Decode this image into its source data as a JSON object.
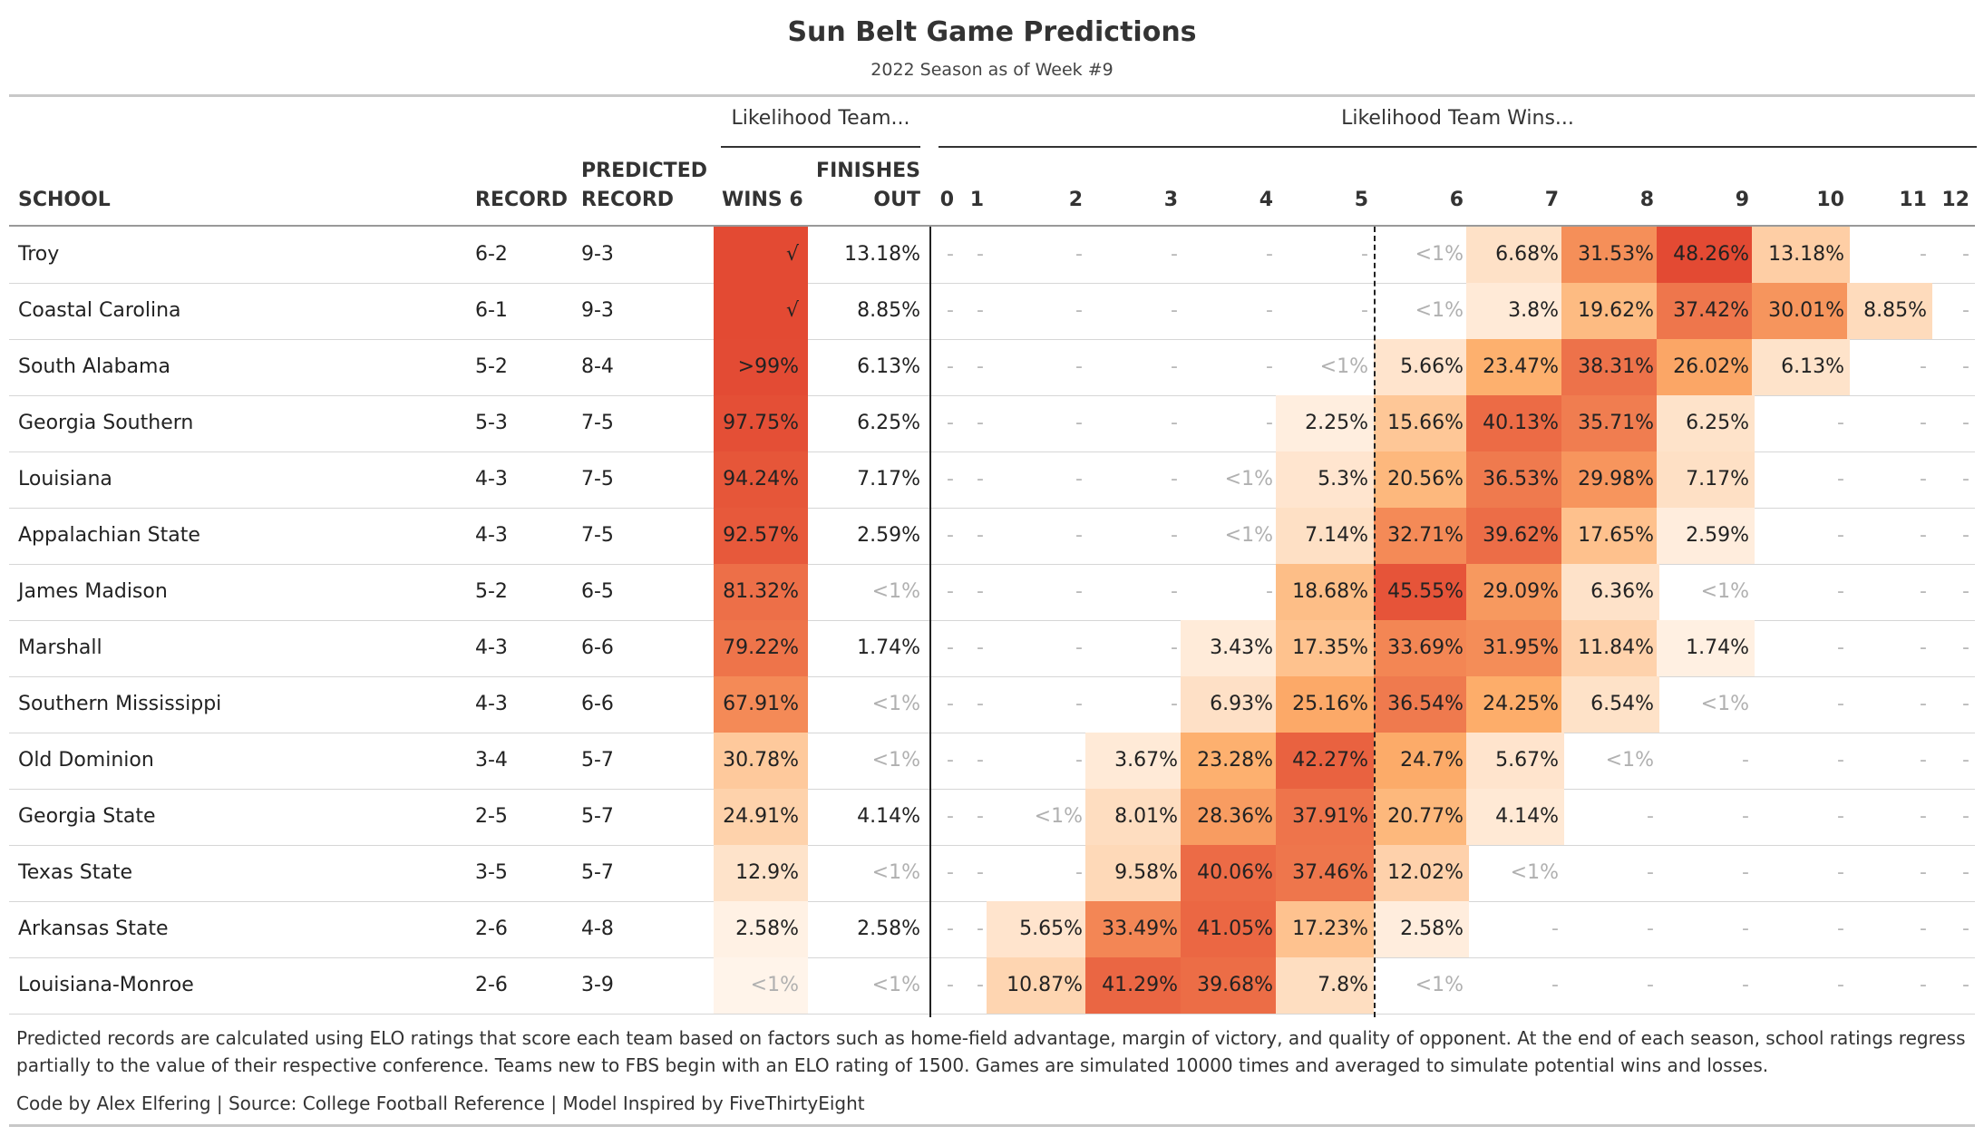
{
  "title": "Sun Belt Game Predictions",
  "subtitle": "2022 Season as of Week #9",
  "spanners": {
    "finish": "Likelihood Team...",
    "wins": "Likelihood Team Wins..."
  },
  "headers": {
    "school": "SCHOOL",
    "record": "RECORD",
    "predicted_line1": "PREDICTED",
    "predicted_line2": "RECORD",
    "wins6": "WINS 6",
    "finishes_line1": "FINISHES",
    "finishes_line2": "OUT",
    "win_counts": [
      "0",
      "1",
      "2",
      "3",
      "4",
      "5",
      "6",
      "7",
      "8",
      "9",
      "10",
      "11",
      "12"
    ]
  },
  "colors": {
    "scale_low": "#fff5eb",
    "scale_mid": "#fdae6b",
    "scale_high": "#e34a33",
    "text": "#222222",
    "muted": "#b0b0b0"
  },
  "chart_data": {
    "type": "table",
    "columns": [
      "SCHOOL",
      "RECORD",
      "PREDICTED RECORD",
      "WINS 6",
      "FINISHES OUT",
      "0",
      "1",
      "2",
      "3",
      "4",
      "5",
      "6",
      "7",
      "8",
      "9",
      "10",
      "11",
      "12"
    ],
    "rows": [
      {
        "school": "Troy",
        "record": "6-2",
        "predicted": "9-3",
        "wins6": "√",
        "wins6_v": 100,
        "finishes_out": "13.18%",
        "wins": [
          "-",
          "-",
          "-",
          "-",
          "-",
          "-",
          "<1%",
          "6.68%",
          "31.53%",
          "48.26%",
          "13.18%",
          "-",
          "-"
        ],
        "wins_v": [
          0,
          0,
          0,
          0,
          0,
          0,
          0.5,
          6.68,
          31.53,
          48.26,
          13.18,
          0,
          0
        ]
      },
      {
        "school": "Coastal Carolina",
        "record": "6-1",
        "predicted": "9-3",
        "wins6": "√",
        "wins6_v": 100,
        "finishes_out": "8.85%",
        "wins": [
          "-",
          "-",
          "-",
          "-",
          "-",
          "-",
          "<1%",
          "3.8%",
          "19.62%",
          "37.42%",
          "30.01%",
          "8.85%",
          "-"
        ],
        "wins_v": [
          0,
          0,
          0,
          0,
          0,
          0,
          0.5,
          3.8,
          19.62,
          37.42,
          30.01,
          8.85,
          0
        ]
      },
      {
        "school": "South Alabama",
        "record": "5-2",
        "predicted": "8-4",
        "wins6": ">99%",
        "wins6_v": 99.5,
        "finishes_out": "6.13%",
        "wins": [
          "-",
          "-",
          "-",
          "-",
          "-",
          "<1%",
          "5.66%",
          "23.47%",
          "38.31%",
          "26.02%",
          "6.13%",
          "-",
          "-"
        ],
        "wins_v": [
          0,
          0,
          0,
          0,
          0,
          0.5,
          5.66,
          23.47,
          38.31,
          26.02,
          6.13,
          0,
          0
        ]
      },
      {
        "school": "Georgia Southern",
        "record": "5-3",
        "predicted": "7-5",
        "wins6": "97.75%",
        "wins6_v": 97.75,
        "finishes_out": "6.25%",
        "wins": [
          "-",
          "-",
          "-",
          "-",
          "-",
          "2.25%",
          "15.66%",
          "40.13%",
          "35.71%",
          "6.25%",
          "-",
          "-",
          "-"
        ],
        "wins_v": [
          0,
          0,
          0,
          0,
          0,
          2.25,
          15.66,
          40.13,
          35.71,
          6.25,
          0,
          0,
          0
        ]
      },
      {
        "school": "Louisiana",
        "record": "4-3",
        "predicted": "7-5",
        "wins6": "94.24%",
        "wins6_v": 94.24,
        "finishes_out": "7.17%",
        "wins": [
          "-",
          "-",
          "-",
          "-",
          "<1%",
          "5.3%",
          "20.56%",
          "36.53%",
          "29.98%",
          "7.17%",
          "-",
          "-",
          "-"
        ],
        "wins_v": [
          0,
          0,
          0,
          0,
          0.5,
          5.3,
          20.56,
          36.53,
          29.98,
          7.17,
          0,
          0,
          0
        ]
      },
      {
        "school": "Appalachian State",
        "record": "4-3",
        "predicted": "7-5",
        "wins6": "92.57%",
        "wins6_v": 92.57,
        "finishes_out": "2.59%",
        "wins": [
          "-",
          "-",
          "-",
          "-",
          "<1%",
          "7.14%",
          "32.71%",
          "39.62%",
          "17.65%",
          "2.59%",
          "-",
          "-",
          "-"
        ],
        "wins_v": [
          0,
          0,
          0,
          0,
          0.5,
          7.14,
          32.71,
          39.62,
          17.65,
          2.59,
          0,
          0,
          0
        ]
      },
      {
        "school": "James Madison",
        "record": "5-2",
        "predicted": "6-5",
        "wins6": "81.32%",
        "wins6_v": 81.32,
        "finishes_out": "<1%",
        "wins": [
          "-",
          "-",
          "-",
          "-",
          "-",
          "18.68%",
          "45.55%",
          "29.09%",
          "6.36%",
          "<1%",
          "-",
          "-",
          "-"
        ],
        "wins_v": [
          0,
          0,
          0,
          0,
          0,
          18.68,
          45.55,
          29.09,
          6.36,
          0.5,
          0,
          0,
          0
        ]
      },
      {
        "school": "Marshall",
        "record": "4-3",
        "predicted": "6-6",
        "wins6": "79.22%",
        "wins6_v": 79.22,
        "finishes_out": "1.74%",
        "wins": [
          "-",
          "-",
          "-",
          "-",
          "3.43%",
          "17.35%",
          "33.69%",
          "31.95%",
          "11.84%",
          "1.74%",
          "-",
          "-",
          "-"
        ],
        "wins_v": [
          0,
          0,
          0,
          0,
          3.43,
          17.35,
          33.69,
          31.95,
          11.84,
          1.74,
          0,
          0,
          0
        ]
      },
      {
        "school": "Southern Mississippi",
        "record": "4-3",
        "predicted": "6-6",
        "wins6": "67.91%",
        "wins6_v": 67.91,
        "finishes_out": "<1%",
        "wins": [
          "-",
          "-",
          "-",
          "-",
          "6.93%",
          "25.16%",
          "36.54%",
          "24.25%",
          "6.54%",
          "<1%",
          "-",
          "-",
          "-"
        ],
        "wins_v": [
          0,
          0,
          0,
          0,
          6.93,
          25.16,
          36.54,
          24.25,
          6.54,
          0.5,
          0,
          0,
          0
        ]
      },
      {
        "school": "Old Dominion",
        "record": "3-4",
        "predicted": "5-7",
        "wins6": "30.78%",
        "wins6_v": 30.78,
        "finishes_out": "<1%",
        "wins": [
          "-",
          "-",
          "-",
          "3.67%",
          "23.28%",
          "42.27%",
          "24.7%",
          "5.67%",
          "<1%",
          "-",
          "-",
          "-",
          "-"
        ],
        "wins_v": [
          0,
          0,
          0,
          3.67,
          23.28,
          42.27,
          24.7,
          5.67,
          0.5,
          0,
          0,
          0,
          0
        ]
      },
      {
        "school": "Georgia State",
        "record": "2-5",
        "predicted": "5-7",
        "wins6": "24.91%",
        "wins6_v": 24.91,
        "finishes_out": "4.14%",
        "wins": [
          "-",
          "-",
          "<1%",
          "8.01%",
          "28.36%",
          "37.91%",
          "20.77%",
          "4.14%",
          "-",
          "-",
          "-",
          "-",
          "-"
        ],
        "wins_v": [
          0,
          0,
          0.5,
          8.01,
          28.36,
          37.91,
          20.77,
          4.14,
          0,
          0,
          0,
          0,
          0
        ]
      },
      {
        "school": "Texas State",
        "record": "3-5",
        "predicted": "5-7",
        "wins6": "12.9%",
        "wins6_v": 12.9,
        "finishes_out": "<1%",
        "wins": [
          "-",
          "-",
          "-",
          "9.58%",
          "40.06%",
          "37.46%",
          "12.02%",
          "<1%",
          "-",
          "-",
          "-",
          "-",
          "-"
        ],
        "wins_v": [
          0,
          0,
          0,
          9.58,
          40.06,
          37.46,
          12.02,
          0.5,
          0,
          0,
          0,
          0,
          0
        ]
      },
      {
        "school": "Arkansas State",
        "record": "2-6",
        "predicted": "4-8",
        "wins6": "2.58%",
        "wins6_v": 2.58,
        "finishes_out": "2.58%",
        "wins": [
          "-",
          "-",
          "5.65%",
          "33.49%",
          "41.05%",
          "17.23%",
          "2.58%",
          "-",
          "-",
          "-",
          "-",
          "-",
          "-"
        ],
        "wins_v": [
          0,
          0,
          5.65,
          33.49,
          41.05,
          17.23,
          2.58,
          0,
          0,
          0,
          0,
          0,
          0
        ]
      },
      {
        "school": "Louisiana-Monroe",
        "record": "2-6",
        "predicted": "3-9",
        "wins6": "<1%",
        "wins6_v": 0.5,
        "finishes_out": "<1%",
        "wins": [
          "-",
          "-",
          "10.87%",
          "41.29%",
          "39.68%",
          "7.8%",
          "<1%",
          "-",
          "-",
          "-",
          "-",
          "-",
          "-"
        ],
        "wins_v": [
          0,
          0,
          10.87,
          41.29,
          39.68,
          7.8,
          0.5,
          0,
          0,
          0,
          0,
          0,
          0
        ]
      }
    ]
  },
  "footnote": "Predicted records are calculated using ELO ratings that score each team based on factors such as home-field advantage, margin of victory, and quality of opponent. At the end of each season, school ratings regress partially to the value of their respective conference. Teams new to FBS begin with an ELO rating of 1500. Games are simulated 10000 times and averaged to simulate potential wins and losses.",
  "credit": "Code by Alex Elfering | Source: College Football Reference | Model Inspired by FiveThirtyEight"
}
